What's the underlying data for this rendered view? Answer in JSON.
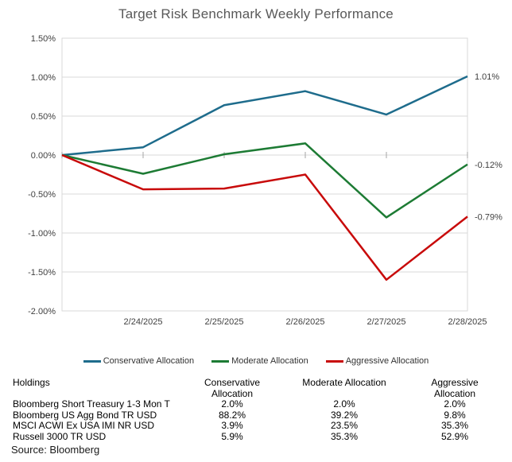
{
  "title": "Target Risk Benchmark Weekly Performance",
  "chart_data": {
    "type": "line",
    "x": [
      "",
      "2/24/2025",
      "2/25/2025",
      "2/26/2025",
      "2/27/2025",
      "2/28/2025"
    ],
    "series": [
      {
        "name": "Conservative Allocation",
        "color": "#1E6C8C",
        "values": [
          0.0,
          0.1,
          0.64,
          0.82,
          0.52,
          1.01
        ],
        "end_label": "1.01%"
      },
      {
        "name": "Moderate Allocation",
        "color": "#1D7B34",
        "values": [
          0.0,
          -0.24,
          0.01,
          0.15,
          -0.8,
          -0.12
        ],
        "end_label": "-0.12%"
      },
      {
        "name": "Aggressive Allocation",
        "color": "#C80A0A",
        "values": [
          0.0,
          -0.44,
          -0.43,
          -0.25,
          -1.6,
          -0.79
        ],
        "end_label": "-0.79%"
      }
    ],
    "title": "Target Risk Benchmark Weekly Performance",
    "xlabel": "",
    "ylabel": "",
    "ylim": [
      -2.0,
      1.5
    ],
    "grid": true,
    "legend_position": "bottom",
    "yticks": [
      {
        "value": 1.5,
        "label": "1.50%"
      },
      {
        "value": 1.0,
        "label": "1.00%"
      },
      {
        "value": 0.5,
        "label": "0.50%"
      },
      {
        "value": 0.0,
        "label": "0.00%"
      },
      {
        "value": -0.5,
        "label": "-0.50%"
      },
      {
        "value": -1.0,
        "label": "-1.00%"
      },
      {
        "value": -1.5,
        "label": "-1.50%"
      },
      {
        "value": -2.0,
        "label": "-2.00%"
      }
    ],
    "grid_color": "#D9D9D9",
    "tick_color": "#A6A6A6",
    "axis_text_color": "#404040"
  },
  "table": {
    "headers": [
      "Holdings",
      "Conservative Allocation",
      "Moderate Allocation",
      "Aggressive Allocation"
    ],
    "rows": [
      {
        "name": "Bloomberg Short Treasury 1-3 Mon T",
        "values": [
          "2.0%",
          "2.0%",
          "2.0%"
        ]
      },
      {
        "name": "Bloomberg US Agg Bond TR USD",
        "values": [
          "88.2%",
          "39.2%",
          "9.8%"
        ]
      },
      {
        "name": "MSCI ACWI Ex USA IMI NR USD",
        "values": [
          "3.9%",
          "23.5%",
          "35.3%"
        ]
      },
      {
        "name": "Russell 3000 TR USD",
        "values": [
          "5.9%",
          "35.3%",
          "52.9%"
        ]
      }
    ]
  },
  "source": "Source: Bloomberg"
}
